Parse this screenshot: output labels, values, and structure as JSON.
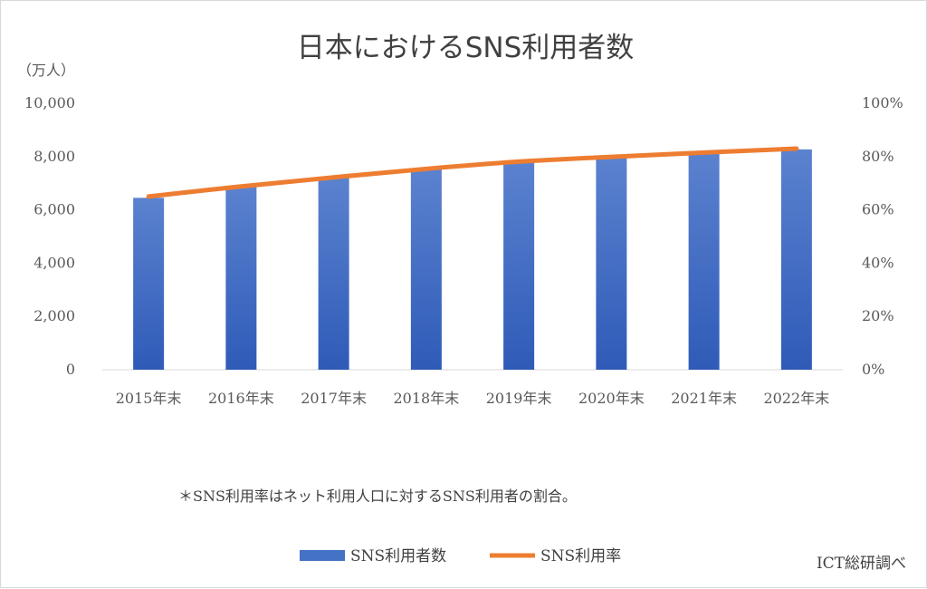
{
  "chart_data": {
    "type": "bar",
    "title": "日本におけるSNS利用者数",
    "ylabel_left_unit": "（万人）",
    "categories": [
      "2015年末",
      "2016年末",
      "2017年末",
      "2018年末",
      "2019年末",
      "2020年末",
      "2021年末",
      "2022年末"
    ],
    "series": [
      {
        "name": "SNS利用者数",
        "type": "bar",
        "axis": "left",
        "color": "#4472c4",
        "values": [
          6451,
          6872,
          7216,
          7523,
          7786,
          7975,
          8149,
          8270
        ]
      },
      {
        "name": "SNS利用率",
        "type": "line",
        "axis": "right",
        "color": "#ed7d31",
        "values": [
          0.65,
          0.688,
          0.722,
          0.754,
          0.781,
          0.799,
          0.815,
          0.83
        ]
      }
    ],
    "ylim_left": [
      0,
      10000
    ],
    "ylim_right": [
      0,
      1
    ],
    "yticks_left": [
      "0",
      "2,000",
      "4,000",
      "6,000",
      "8,000",
      "10,000"
    ],
    "yticks_right": [
      "0%",
      "20%",
      "40%",
      "60%",
      "80%",
      "100%"
    ],
    "grid": false,
    "legend": "bottom",
    "annotations": {
      "footnote": "＊SNS利用率はネット利用人口に対するSNS利用者の割合。",
      "source": "ICT総研調べ"
    }
  }
}
